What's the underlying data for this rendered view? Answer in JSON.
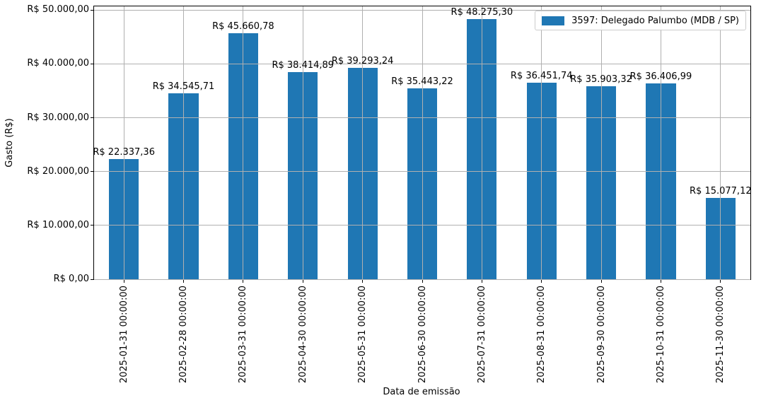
{
  "chart_data": {
    "type": "bar",
    "title": "",
    "xlabel": "Data de emissão",
    "ylabel": "Gasto (R$)",
    "categories": [
      "2025-01-31 00:00:00",
      "2025-02-28 00:00:00",
      "2025-03-31 00:00:00",
      "2025-04-30 00:00:00",
      "2025-05-31 00:00:00",
      "2025-06-30 00:00:00",
      "2025-07-31 00:00:00",
      "2025-08-31 00:00:00",
      "2025-09-30 00:00:00",
      "2025-10-31 00:00:00",
      "2025-11-30 00:00:00"
    ],
    "series": [
      {
        "name": "3597: Delegado Palumbo (MDB / SP)",
        "values": [
          22337.36,
          34545.71,
          45660.78,
          38414.89,
          39293.24,
          35443.22,
          48275.3,
          36451.74,
          35903.32,
          36406.99,
          15077.12
        ],
        "value_labels": [
          "R$ 22.337,36",
          "R$ 34.545,71",
          "R$ 45.660,78",
          "R$ 38.414,89",
          "R$ 39.293,24",
          "R$ 35.443,22",
          "R$ 48.275,30",
          "R$ 36.451,74",
          "R$ 35.903,32",
          "R$ 36.406,99",
          "R$ 15.077,12"
        ],
        "color": "#1f77b4"
      }
    ],
    "yticks": {
      "values": [
        0,
        10000,
        20000,
        30000,
        40000,
        50000
      ],
      "labels": [
        "R$ 0,00",
        "R$ 10.000,00",
        "R$ 20.000,00",
        "R$ 30.000,00",
        "R$ 40.000,00",
        "R$ 50.000,00"
      ]
    },
    "ylim": [
      0,
      50689
    ],
    "grid": true,
    "bar_width_fraction": 0.5,
    "legend": {
      "position": "upper-right",
      "entries": [
        {
          "label": "3597: Delegado Palumbo (MDB / SP)",
          "color": "#1f77b4"
        }
      ]
    },
    "colors": {
      "bar": "#1f77b4",
      "grid": "#b0b0b0",
      "axis": "#000000",
      "background": "#ffffff"
    }
  }
}
